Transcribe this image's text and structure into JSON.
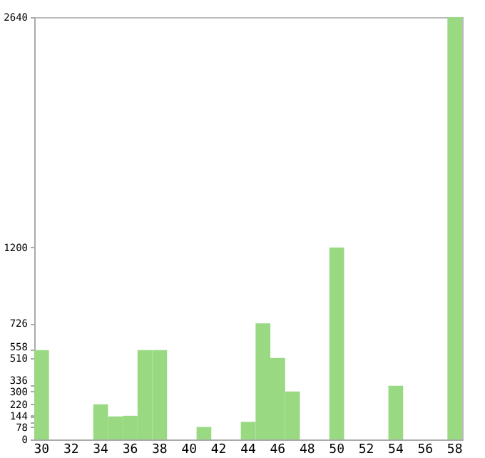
{
  "chart_data": {
    "type": "bar",
    "categories": [
      "30",
      null,
      "32",
      null,
      "34",
      null,
      "36",
      null,
      "38",
      null,
      "40",
      null,
      "42",
      null,
      "44",
      null,
      "46",
      null,
      "48",
      null,
      "50",
      null,
      "52",
      null,
      "54",
      null,
      "56",
      null,
      "58"
    ],
    "values": [
      558,
      0,
      0,
      0,
      220,
      144,
      148,
      558,
      558,
      0,
      0,
      78,
      0,
      0,
      110,
      726,
      510,
      300,
      0,
      0,
      1200,
      0,
      0,
      0,
      336,
      0,
      0,
      0,
      2640
    ],
    "color": "#98d982",
    "ylim": [
      0,
      2640
    ],
    "yticks": [
      0,
      78,
      {
        "value": 110,
        "label": null
      },
      144,
      {
        "value": 148,
        "label": null
      },
      220,
      300,
      336,
      510,
      558,
      726,
      1200,
      2640
    ],
    "grid": false
  }
}
